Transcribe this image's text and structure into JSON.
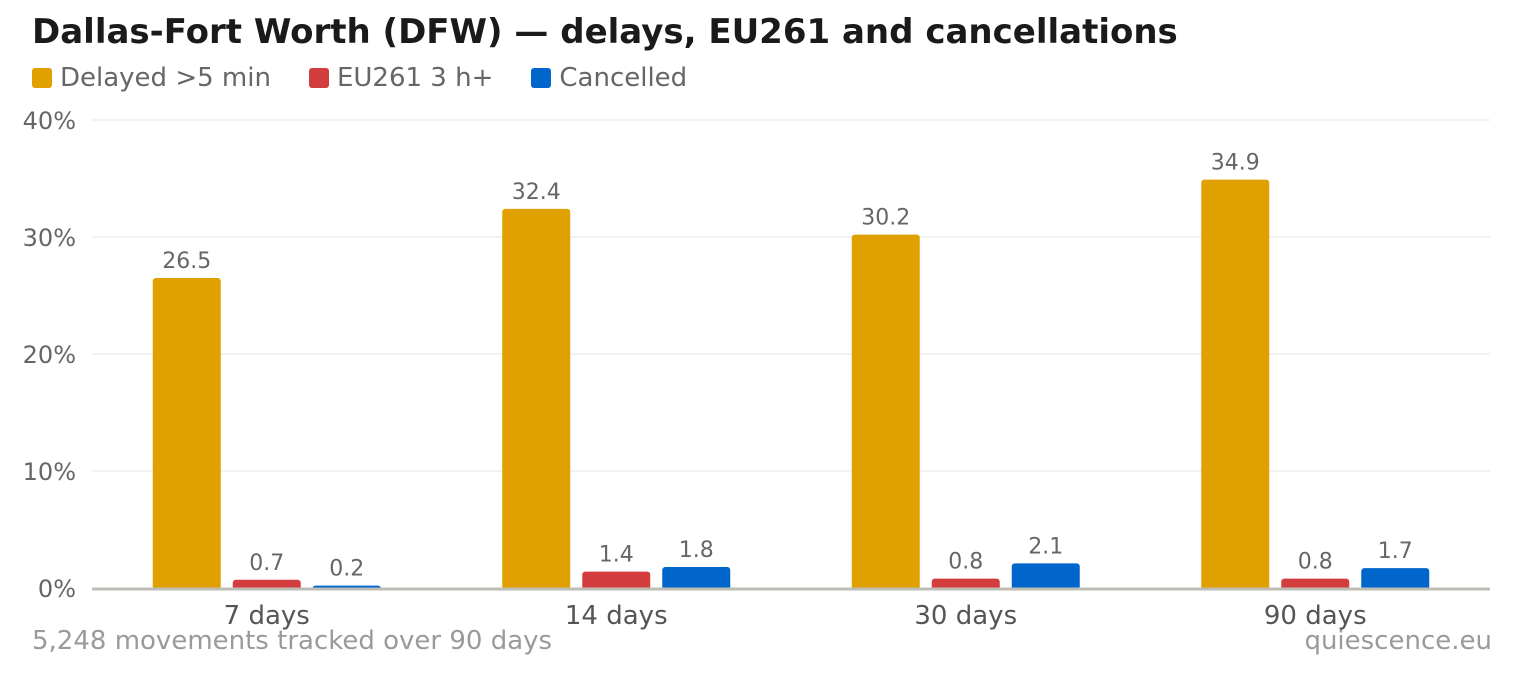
{
  "title": "Dallas-Fort Worth (DFW) — delays, EU261 and cancellations",
  "footer": {
    "left": "5,248 movements tracked over 90 days",
    "right": "quiescence.eu"
  },
  "chart_data": {
    "type": "bar",
    "title": "Dallas-Fort Worth (DFW) — delays, EU261 and cancellations",
    "xlabel": "",
    "ylabel": "",
    "categories": [
      "7 days",
      "14 days",
      "30 days",
      "90 days"
    ],
    "ylim": [
      0,
      40
    ],
    "yticks": [
      0,
      10,
      20,
      30,
      40
    ],
    "ytick_labels": [
      "0%",
      "10%",
      "20%",
      "30%",
      "40%"
    ],
    "grid": true,
    "legend_position": "top-left",
    "series": [
      {
        "name": "Delayed >5 min",
        "color": "#E0A000",
        "values": [
          26.5,
          32.4,
          30.2,
          34.9
        ],
        "labels": [
          "26.5",
          "32.4",
          "30.2",
          "34.9"
        ]
      },
      {
        "name": "EU261 3 h+",
        "color": "#D43D3D",
        "values": [
          0.7,
          1.4,
          0.8,
          0.8
        ],
        "labels": [
          "0.7",
          "1.4",
          "0.8",
          "0.8"
        ]
      },
      {
        "name": "Cancelled",
        "color": "#0066CC",
        "values": [
          0.2,
          1.8,
          2.1,
          1.7
        ],
        "labels": [
          "0.2",
          "1.8",
          "2.1",
          "1.7"
        ]
      }
    ]
  }
}
